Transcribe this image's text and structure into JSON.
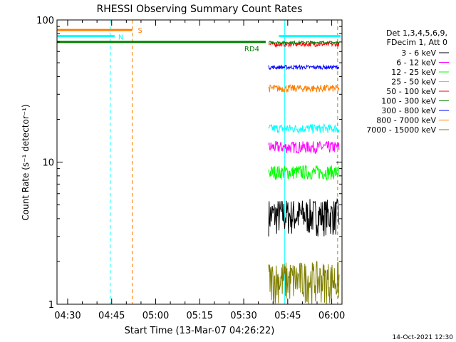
{
  "chart_data": {
    "type": "line",
    "title": "RHESSI Observing Summary Count Rates",
    "xlabel": "Start Time (13-Mar-07 04:26:22)",
    "ylabel": "Count Rate (s⁻¹ detector⁻¹)",
    "y_scale": "log",
    "ylim": [
      1,
      100
    ],
    "xlim": [
      "04:26:22",
      "06:03:30"
    ],
    "x_ticks": [
      "04:30",
      "04:45",
      "05:00",
      "05:15",
      "05:30",
      "05:45",
      "06:00"
    ],
    "y_ticks": [
      "1",
      "10",
      "100"
    ],
    "legend_header": [
      "Det 1,3,4,5,6,9,",
      "FDecim 1, Att 0"
    ],
    "legend_placement": "right",
    "series": [
      {
        "name": "3 - 6 keV",
        "color": "#000000",
        "x_start": "05:38:30",
        "x_end": "06:02:30",
        "y_low": 3.0,
        "y_high": 5.5
      },
      {
        "name": "6 - 12 keV",
        "color": "#ff00ff",
        "x_start": "05:38:30",
        "x_end": "06:02:30",
        "y_low": 11.5,
        "y_high": 14.0
      },
      {
        "name": "12 - 25 keV",
        "color": "#00ff00",
        "x_start": "05:38:30",
        "x_end": "06:02:30",
        "y_low": 7.5,
        "y_high": 9.5
      },
      {
        "name": "25 - 50 keV",
        "color": "#00ffff",
        "x_start": "05:38:30",
        "x_end": "06:02:30",
        "y_low": 16.0,
        "y_high": 18.5
      },
      {
        "name": "50 - 100 keV",
        "color": "#ff0000",
        "x_start": "05:38:30",
        "x_end": "06:02:30",
        "y_low": 65.0,
        "y_high": 70.0
      },
      {
        "name": "100 - 300 keV",
        "color": "#008000",
        "x_start": "05:38:30",
        "x_end": "06:02:30",
        "y_low": 68.0,
        "y_high": 71.0
      },
      {
        "name": "300 - 800 keV",
        "color": "#0000ff",
        "x_start": "05:38:30",
        "x_end": "06:02:30",
        "y_low": 45.0,
        "y_high": 48.0
      },
      {
        "name": "800 - 7000 keV",
        "color": "#ff8000",
        "x_start": "05:38:30",
        "x_end": "06:02:30",
        "y_low": 31.0,
        "y_high": 35.0
      },
      {
        "name": "7000 - 15000 keV",
        "color": "#808000",
        "x_start": "05:38:30",
        "x_end": "06:02:30",
        "y_low": 1.0,
        "y_high": 2.0
      }
    ],
    "flag_bars": [
      {
        "label": "S",
        "color": "#ff8000",
        "x_start": "04:26:22",
        "x_end": "04:52:00",
        "y": 85
      },
      {
        "label": "N",
        "color": "#00ffff",
        "x_start": "04:26:22",
        "x_end": "04:46:00",
        "y": 77
      },
      {
        "label": "RD4",
        "color": "#008000",
        "x_start": "04:26:22",
        "x_end": "05:37:30",
        "y": 70
      }
    ],
    "vertical_lines": [
      {
        "x": "04:26:22",
        "color": "#00ffff",
        "style": "solid"
      },
      {
        "x": "04:44:30",
        "color": "#00ffff",
        "style": "dashed"
      },
      {
        "x": "04:52:00",
        "color": "#ff8000",
        "style": "dashed"
      },
      {
        "x": "05:44:00",
        "color": "#00ffff",
        "style": "solid"
      },
      {
        "x": "06:02:00",
        "color": "#00ffff",
        "style": "dashed"
      },
      {
        "x": "06:02:00",
        "color": "#ff8000",
        "style": "dashed"
      }
    ],
    "footer_timestamp": "14-Oct-2021 12:30"
  }
}
